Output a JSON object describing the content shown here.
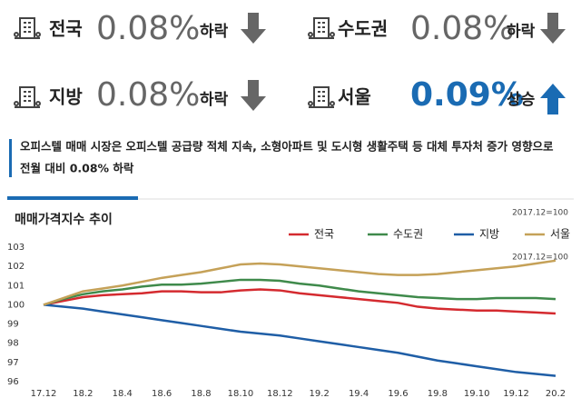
{
  "stats": [
    {
      "label": "전국",
      "value": "0.08%",
      "direction": "하락"
    },
    {
      "label": "수도권",
      "value": "0.08%",
      "direction": "하락"
    },
    {
      "label": "지방",
      "value": "0.08%",
      "direction": "하락"
    },
    {
      "label": "서울",
      "value": "0.09%",
      "direction": "상승"
    }
  ],
  "description": [
    "오피스텔 매매 시장은 오피스텔 공급량 적체 지속, 소형아파트 및 도시형 생활주택 등 대체 투자처 증가 영향으로",
    "전월 대비 0.08% 하락"
  ],
  "chart_data": {
    "type": "line",
    "title": "매매가격지수 추이",
    "annotations": [
      "2017.12=100",
      "2017.12=100"
    ],
    "categories": [
      "17.12",
      null,
      "18.2",
      null,
      "18.4",
      null,
      "18.6",
      null,
      "18.8",
      null,
      "18.10",
      null,
      "18.12",
      null,
      "19.2",
      null,
      "19.4",
      null,
      "19.6",
      null,
      "19.8",
      null,
      "19.10",
      null,
      "19.12",
      null,
      "20.2"
    ],
    "ylim": [
      96,
      103
    ],
    "yticks": [
      96,
      97,
      98,
      99,
      100,
      101,
      102,
      103
    ],
    "grid": false,
    "series": [
      {
        "name": "전국",
        "color": "#d42a2f",
        "values": [
          100,
          100.2,
          100.4,
          100.5,
          100.55,
          100.6,
          100.7,
          100.7,
          100.65,
          100.65,
          100.75,
          100.8,
          100.75,
          100.6,
          100.5,
          100.4,
          100.3,
          100.2,
          100.1,
          99.9,
          99.8,
          99.75,
          99.7,
          99.7,
          99.65,
          99.6,
          99.55
        ]
      },
      {
        "name": "수도권",
        "color": "#3f8a4b",
        "values": [
          100,
          100.3,
          100.55,
          100.7,
          100.8,
          100.95,
          101.05,
          101.05,
          101.1,
          101.2,
          101.3,
          101.3,
          101.25,
          101.1,
          101.0,
          100.85,
          100.7,
          100.6,
          100.5,
          100.4,
          100.35,
          100.3,
          100.3,
          100.35,
          100.35,
          100.35,
          100.3
        ]
      },
      {
        "name": "지방",
        "color": "#1f5ea6",
        "values": [
          100,
          99.9,
          99.8,
          99.65,
          99.5,
          99.35,
          99.2,
          99.05,
          98.9,
          98.75,
          98.6,
          98.5,
          98.4,
          98.25,
          98.1,
          97.95,
          97.8,
          97.65,
          97.5,
          97.3,
          97.1,
          96.95,
          96.8,
          96.65,
          96.5,
          96.4,
          96.3
        ]
      },
      {
        "name": "서울",
        "color": "#c5a158",
        "values": [
          100,
          100.35,
          100.7,
          100.85,
          101.0,
          101.2,
          101.4,
          101.55,
          101.7,
          101.9,
          102.1,
          102.15,
          102.1,
          102.0,
          101.9,
          101.8,
          101.7,
          101.6,
          101.55,
          101.55,
          101.6,
          101.7,
          101.8,
          101.9,
          102.0,
          102.15,
          102.3
        ]
      }
    ]
  }
}
